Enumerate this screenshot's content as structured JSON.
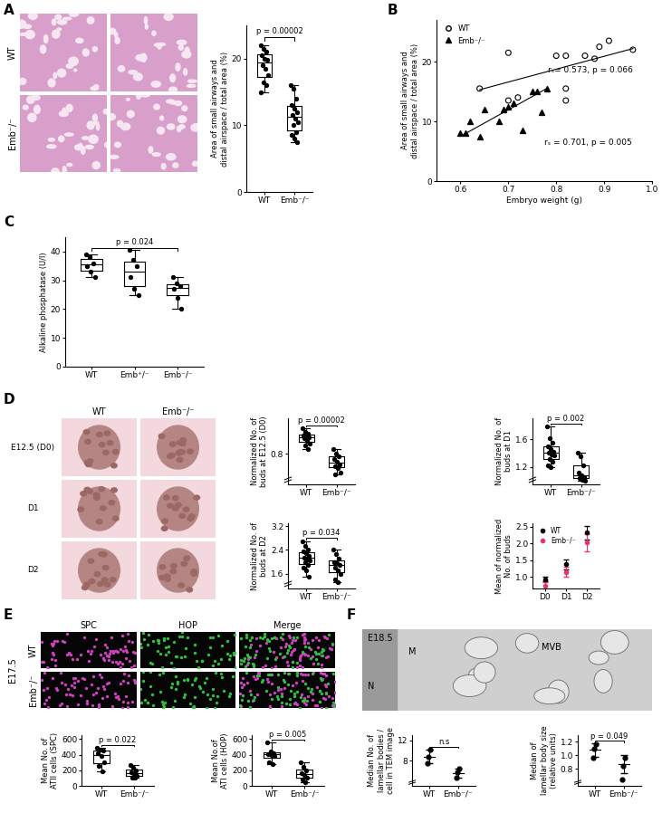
{
  "chart_data": [
    {
      "type": "box",
      "ylabel": "Area of small airways and\ndistal airspace / total area (%)",
      "categories": [
        "WT",
        "Emb⁻/⁻"
      ],
      "color": "#000000",
      "values": [
        [
          22,
          21.5,
          21,
          20.5,
          20,
          19.8,
          19,
          18.5,
          17.5,
          16.5,
          16,
          15
        ],
        [
          16,
          15.5,
          14,
          13,
          12.5,
          12,
          11.5,
          11,
          10.5,
          10,
          9,
          8.5,
          8,
          7.5
        ]
      ],
      "ylim": [
        0,
        25
      ],
      "yticks": [
        0,
        10,
        20
      ],
      "significance": [
        {
          "between": [
            "WT",
            "Emb⁻/⁻"
          ],
          "label": "p = 0.00002"
        }
      ]
    },
    {
      "type": "scatter",
      "panel": "B",
      "xlabel": "Embryo weight (g)",
      "ylabel": "Area of small airways and\ndistal airspace / total area (%)",
      "xlim": [
        0.55,
        1.0
      ],
      "xticks": [
        0.6,
        0.7,
        0.8,
        0.9,
        1.0
      ],
      "ylim": [
        0,
        27
      ],
      "yticks": [
        0,
        10,
        20
      ],
      "legend": "upper left",
      "series": [
        {
          "name": "WT",
          "color": "#000000",
          "marker": "open_circle",
          "x": [
            0.64,
            0.7,
            0.7,
            0.72,
            0.8,
            0.82,
            0.82,
            0.82,
            0.86,
            0.88,
            0.89,
            0.91,
            0.96
          ],
          "values": [
            15.5,
            21.5,
            13.5,
            14,
            21,
            13.5,
            15.5,
            21,
            21,
            20.5,
            22.5,
            23.5,
            22
          ],
          "trend_x": [
            0.64,
            0.96
          ],
          "trend_values": [
            15.3,
            22.2
          ],
          "annotation": "rₛ= 0.573, p = 0.066"
        },
        {
          "name": "Emb⁻/⁻",
          "color": "#000000",
          "marker": "triangle",
          "x": [
            0.6,
            0.61,
            0.62,
            0.64,
            0.65,
            0.68,
            0.69,
            0.7,
            0.71,
            0.73,
            0.75,
            0.76,
            0.77,
            0.78
          ],
          "values": [
            8,
            8,
            10,
            7.5,
            12,
            10,
            12,
            12.5,
            13,
            8.5,
            15,
            15,
            11.5,
            15.5
          ],
          "trend_x": [
            0.6,
            0.78
          ],
          "trend_values": [
            7.5,
            15.5
          ],
          "annotation": "rₛ = 0.701, p = 0.005"
        }
      ]
    },
    {
      "type": "box",
      "panel": "C",
      "ylabel": "Alkaline phosphatase (U/l)",
      "categories": [
        "WT",
        "Emb⁺/⁻",
        "Emb⁻/⁻"
      ],
      "color": "#000000",
      "values": [
        [
          39,
          38,
          36,
          35,
          33,
          31
        ],
        [
          40.5,
          37,
          35,
          31,
          27,
          25
        ],
        [
          31,
          29,
          28,
          27,
          24,
          20
        ]
      ],
      "ylim": [
        0,
        45
      ],
      "yticks": [
        0,
        10,
        20,
        30,
        40
      ],
      "significance": [
        {
          "between": [
            "WT",
            "Emb⁻/⁻"
          ],
          "label": "p = 0.024"
        }
      ]
    },
    {
      "type": "box",
      "ylabel": "Normalized No. of\nbuds at E12.5 (D0)",
      "categories": [
        "WT",
        "Emb⁻/⁻"
      ],
      "color": "#000000",
      "values": [
        [
          1.05,
          1.02,
          1.0,
          0.98,
          0.97,
          0.96,
          0.95,
          0.93,
          0.9,
          0.88,
          0.85
        ],
        [
          0.85,
          0.8,
          0.78,
          0.75,
          0.72,
          0.7,
          0.68,
          0.66,
          0.62,
          0.6
        ]
      ],
      "ylim": [
        0.5,
        1.15
      ],
      "yticks": [
        0.8
      ],
      "significance": [
        {
          "between": [
            "WT",
            "Emb⁻/⁻"
          ],
          "label": "p = 0.00002"
        }
      ]
    },
    {
      "type": "box",
      "ylabel": "Normalized No. of\nbuds at D1",
      "categories": [
        "WT",
        "Emb⁻/⁻"
      ],
      "color": "#000000",
      "values": [
        [
          1.78,
          1.62,
          1.55,
          1.5,
          1.46,
          1.42,
          1.4,
          1.38,
          1.36,
          1.32,
          1.28,
          1.22,
          1.2
        ],
        [
          1.4,
          1.35,
          1.22,
          1.12,
          1.08,
          1.05,
          1.04,
          1.02,
          1.0
        ]
      ],
      "ylim": [
        0.95,
        1.9
      ],
      "yticks": [
        1.2,
        1.6
      ],
      "significance": [
        {
          "between": [
            "WT",
            "Emb⁻/⁻"
          ],
          "label": "p = 0.002"
        }
      ]
    },
    {
      "type": "box",
      "ylabel": "Normalized No. of\nbuds at D2",
      "categories": [
        "WT",
        "Emb⁻/⁻"
      ],
      "color": "#000000",
      "values": [
        [
          2.7,
          2.55,
          2.4,
          2.35,
          2.3,
          2.2,
          2.15,
          2.1,
          2.05,
          2.0,
          1.9,
          1.8,
          1.7,
          1.5
        ],
        [
          2.4,
          2.25,
          2.1,
          2.0,
          1.95,
          1.9,
          1.8,
          1.7,
          1.6,
          1.4,
          1.3
        ]
      ],
      "ylim": [
        1.1,
        3.3
      ],
      "yticks": [
        1.6,
        2.4,
        3.2
      ],
      "significance": [
        {
          "between": [
            "WT",
            "Emb⁻/⁻"
          ],
          "label": "p = 0.034"
        }
      ]
    },
    {
      "type": "errorbar",
      "ylabel": "Mean of normalized\nNo. of buds",
      "categories": [
        "D0",
        "D1",
        "D2"
      ],
      "legend": "upper left",
      "ylim": [
        0.65,
        2.6
      ],
      "yticks": [
        1.0,
        1.5,
        2.0,
        2.5
      ],
      "series": [
        {
          "name": "WT",
          "color": "#000000",
          "marker": "circle",
          "values": [
            0.93,
            1.38,
            2.32
          ],
          "error": [
            0.06,
            0.15,
            0.2
          ]
        },
        {
          "name": "Emb⁻/⁻",
          "color": "#e8336d",
          "marker": "circle",
          "values": [
            0.73,
            1.15,
            2.02
          ],
          "error": [
            0.1,
            0.15,
            0.25
          ]
        }
      ]
    },
    {
      "type": "box",
      "ylabel": "Mean No. of\nATII cells (SPC)",
      "categories": [
        "WT",
        "Emb⁻/⁻"
      ],
      "color": "#000000",
      "values": [
        [
          490,
          460,
          450,
          420,
          380,
          300,
          250,
          180
        ],
        [
          270,
          230,
          200,
          170,
          150,
          130,
          110,
          100
        ]
      ],
      "ylim": [
        0,
        650
      ],
      "yticks": [
        0,
        200,
        400,
        600
      ],
      "significance": [
        {
          "between": [
            "WT",
            "Emb⁻/⁻"
          ],
          "label": "p = 0.022"
        }
      ]
    },
    {
      "type": "box",
      "ylabel": "Mean No.of\nATI cells (HOP)",
      "categories": [
        "WT",
        "Emb⁻/⁻"
      ],
      "color": "#000000",
      "values": [
        [
          560,
          440,
          420,
          410,
          400,
          380,
          300,
          280
        ],
        [
          300,
          240,
          200,
          160,
          140,
          110,
          80,
          50
        ]
      ],
      "ylim": [
        0,
        650
      ],
      "yticks": [
        0,
        200,
        400,
        600
      ],
      "significance": [
        {
          "between": [
            "WT",
            "Emb⁻/⁻"
          ],
          "label": "p = 0.005"
        }
      ]
    },
    {
      "type": "dot",
      "ylabel": "Median No. of\nlamellar bodies /\ncell in TEM image",
      "categories": [
        "WT",
        "Emb⁻/⁻"
      ],
      "color": "#000000",
      "values": [
        [
          7.5,
          8.8,
          10.2
        ],
        [
          4.6,
          5.6,
          6.4
        ]
      ],
      "mean": [
        8.8,
        5.5
      ],
      "error": [
        1.35,
        0.9
      ],
      "ylim": [
        3,
        13
      ],
      "yticks": [
        8,
        12
      ],
      "significance": [
        {
          "between": [
            "WT",
            "Emb⁻/⁻"
          ],
          "label": "n.s"
        }
      ]
    },
    {
      "type": "dot",
      "ylabel": "Median of\nlamellar body size\n(relative units)",
      "categories": [
        "WT",
        "Emb⁻/⁻"
      ],
      "color": "#000000",
      "values": [
        [
          0.97,
          1.1,
          1.17
        ],
        [
          0.65,
          0.85,
          0.97
        ]
      ],
      "mean": [
        1.08,
        0.87
      ],
      "error": [
        0.1,
        0.13
      ],
      "ylim": [
        0.55,
        1.3
      ],
      "yticks": [
        0.8,
        1.0,
        1.2
      ],
      "significance": [
        {
          "between": [
            "WT",
            "Emb⁻/⁻"
          ],
          "label": "p = 0.049"
        }
      ]
    }
  ],
  "images": [
    {
      "panel": "A",
      "style": "histology",
      "row_labels": [
        "WT",
        "Emb⁻/⁻"
      ]
    },
    {
      "panel": "D",
      "style": "explant",
      "row_labels": [
        "E12.5 (D0)",
        "D1",
        "D2"
      ],
      "column_labels": [
        "WT",
        "Emb⁻/⁻"
      ]
    },
    {
      "panel": "E",
      "style": "fluorescence",
      "stage": "E17.5",
      "row_labels": [
        "WT",
        "Emb⁻/⁻"
      ],
      "column_labels": [
        "SPC",
        "HOP",
        "Merge"
      ]
    },
    {
      "panel": "F",
      "style": "tem",
      "stage": "E18.5",
      "annotations": [
        "M",
        "N",
        "MVB"
      ]
    }
  ]
}
